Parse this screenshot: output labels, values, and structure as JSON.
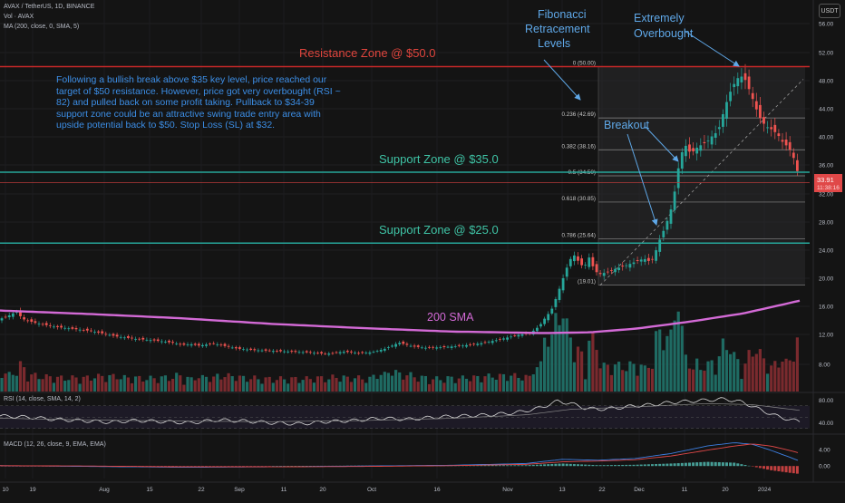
{
  "header": {
    "symbol_line": "AVAX / TetherUS, 1D, BINANCE",
    "volume_line": "Vol · AVAX",
    "ma_line": "MA (200, close, 0, SMA, 5)",
    "currency": "USDT"
  },
  "annotations": {
    "resistance": "Resistance Zone @ $50.0",
    "support_35": "Support Zone @ $35.0",
    "support_25": "Support Zone @ $25.0",
    "fib_title": [
      "Fibonacci",
      "Retracement",
      "Levels"
    ],
    "overbought": [
      "Extremely",
      "Overbought"
    ],
    "breakout": "Breakout",
    "sma_label": "200 SMA",
    "note": "Following a bullish break above $35 key level, price reached our target of $50 resistance. However, price got very overbought (RSI ~ 82) and pulled back on some profit taking. Pullback to $34-39 support zone could be an attractive swing trade entry area with upside potential back to $50. Stop Loss (SL) at $32."
  },
  "price_badges": {
    "last": "33.91",
    "countdown": "11:38:16"
  },
  "panes": {
    "rsi_label": "RSI (14, close, SMA, 14, 2)",
    "macd_label": "MACD (12, 26, close, 9, EMA, EMA)"
  },
  "colors": {
    "up": "#26a69a",
    "down": "#ef5350",
    "vol_up": "#1f6b63",
    "vol_down": "#7a2a2e",
    "resistance": "#c62828",
    "support": "#26a69a",
    "sma": "#d36ad6",
    "annotation": "#5fa8e8",
    "fib_line": "#8a8a8a"
  },
  "chart_data": [
    {
      "type": "candlestick",
      "title": "AVAX / TetherUS, 1D, BINANCE",
      "x_ticks": [
        "10",
        "19",
        "Aug",
        "15",
        "22",
        "Sep",
        "11",
        "20",
        "Oct",
        "16",
        "Nov",
        "13",
        "22",
        "Dec",
        "11",
        "20",
        "2024"
      ],
      "y_ticks": [
        8.0,
        12.0,
        16.0,
        20.0,
        24.0,
        28.0,
        32.0,
        36.0,
        40.0,
        44.0,
        48.0,
        52.0,
        56.0
      ],
      "ylim": [
        6.0,
        57.0
      ],
      "close_path": [
        [
          0,
          14.2
        ],
        [
          12,
          14.8
        ],
        [
          18,
          15.3
        ],
        [
          25,
          14.2
        ],
        [
          40,
          13.6
        ],
        [
          60,
          13.1
        ],
        [
          80,
          12.8
        ],
        [
          100,
          12.5
        ],
        [
          115,
          12.1
        ],
        [
          130,
          11.7
        ],
        [
          150,
          11.4
        ],
        [
          170,
          11.2
        ],
        [
          190,
          10.9
        ],
        [
          200,
          10.6
        ],
        [
          210,
          10.7
        ],
        [
          220,
          10.5
        ],
        [
          235,
          10.8
        ],
        [
          250,
          10.4
        ],
        [
          262,
          10.1
        ],
        [
          280,
          9.9
        ],
        [
          300,
          9.8
        ],
        [
          320,
          9.7
        ],
        [
          340,
          9.6
        ],
        [
          360,
          9.4
        ],
        [
          380,
          9.7
        ],
        [
          395,
          9.5
        ],
        [
          410,
          9.6
        ],
        [
          425,
          10.1
        ],
        [
          440,
          10.9
        ],
        [
          455,
          10.4
        ],
        [
          470,
          10.2
        ],
        [
          490,
          10.3
        ],
        [
          510,
          10.5
        ],
        [
          530,
          10.8
        ],
        [
          550,
          11.3
        ],
        [
          570,
          11.9
        ],
        [
          585,
          12.2
        ],
        [
          595,
          13.2
        ],
        [
          602,
          14.5
        ],
        [
          608,
          15.4
        ],
        [
          614,
          17.4
        ],
        [
          620,
          19.6
        ],
        [
          626,
          21.8
        ],
        [
          632,
          23.5
        ],
        [
          638,
          22.4
        ],
        [
          644,
          21.5
        ],
        [
          650,
          23.0
        ],
        [
          656,
          21.0
        ],
        [
          662,
          20.6
        ],
        [
          670,
          20.9
        ],
        [
          680,
          21.4
        ],
        [
          690,
          21.8
        ],
        [
          700,
          22.3
        ],
        [
          710,
          22.8
        ],
        [
          718,
          22.3
        ],
        [
          722,
          23.4
        ],
        [
          728,
          25.6
        ],
        [
          734,
          27.4
        ],
        [
          740,
          29.8
        ],
        [
          746,
          33.5
        ],
        [
          750,
          37.2
        ],
        [
          756,
          38.8
        ],
        [
          762,
          37.6
        ],
        [
          768,
          38.4
        ],
        [
          774,
          38.9
        ],
        [
          780,
          39.3
        ],
        [
          786,
          40.2
        ],
        [
          792,
          40.8
        ],
        [
          798,
          43.5
        ],
        [
          804,
          46.0
        ],
        [
          810,
          47.6
        ],
        [
          816,
          48.8
        ],
        [
          822,
          48.1
        ],
        [
          828,
          46.2
        ],
        [
          834,
          44.0
        ],
        [
          840,
          42.2
        ],
        [
          846,
          41.4
        ],
        [
          852,
          41.0
        ],
        [
          858,
          40.3
        ],
        [
          864,
          39.1
        ],
        [
          870,
          38.5
        ],
        [
          876,
          36.8
        ],
        [
          882,
          33.9
        ]
      ],
      "sma200": [
        [
          0,
          15.4
        ],
        [
          100,
          14.9
        ],
        [
          200,
          14.3
        ],
        [
          300,
          13.5
        ],
        [
          400,
          12.9
        ],
        [
          500,
          12.4
        ],
        [
          600,
          12.2
        ],
        [
          650,
          12.3
        ],
        [
          700,
          12.8
        ],
        [
          760,
          13.8
        ],
        [
          820,
          15.0
        ],
        [
          882,
          16.8
        ]
      ],
      "horizontal_levels": [
        {
          "name": "Resistance Zone @ $50.0",
          "value": 50.0
        },
        {
          "name": "Support Zone @ $35.0",
          "value": 35.0
        },
        {
          "name": "Support Zone @ $25.0",
          "value": 25.0
        }
      ],
      "fibonacci": [
        {
          "ratio": "0",
          "price": 50.0,
          "label": "0 (50.00)"
        },
        {
          "ratio": "0.236",
          "price": 42.69,
          "label": "0.236 (42.69)"
        },
        {
          "ratio": "0.382",
          "price": 38.16,
          "label": "0.382 (38.16)"
        },
        {
          "ratio": "0.5",
          "price": 34.5,
          "label": "0.5 (34.50)"
        },
        {
          "ratio": "0.618",
          "price": 30.85,
          "label": "0.618 (30.85)"
        },
        {
          "ratio": "0.786",
          "price": 25.64,
          "label": "0.786 (25.64)"
        },
        {
          "ratio": "1",
          "price": 19.01,
          "label": "(19.01)"
        }
      ]
    },
    {
      "type": "line",
      "title": "RSI (14, close, SMA, 14, 2)",
      "y_ticks": [
        40.0,
        80.0
      ],
      "ylim": [
        28,
        92
      ],
      "rsi": [
        [
          0,
          52
        ],
        [
          30,
          50
        ],
        [
          60,
          46
        ],
        [
          90,
          44
        ],
        [
          120,
          41
        ],
        [
          150,
          44
        ],
        [
          180,
          42
        ],
        [
          210,
          40
        ],
        [
          240,
          45
        ],
        [
          270,
          43
        ],
        [
          300,
          40
        ],
        [
          330,
          38
        ],
        [
          360,
          42
        ],
        [
          390,
          44
        ],
        [
          420,
          48
        ],
        [
          450,
          46
        ],
        [
          480,
          50
        ],
        [
          510,
          52
        ],
        [
          540,
          54
        ],
        [
          570,
          58
        ],
        [
          595,
          66
        ],
        [
          615,
          78
        ],
        [
          630,
          74
        ],
        [
          645,
          66
        ],
        [
          660,
          64
        ],
        [
          680,
          66
        ],
        [
          700,
          70
        ],
        [
          720,
          72
        ],
        [
          740,
          76
        ],
        [
          760,
          78
        ],
        [
          780,
          80
        ],
        [
          800,
          82
        ],
        [
          820,
          76
        ],
        [
          840,
          62
        ],
        [
          860,
          50
        ],
        [
          882,
          42
        ]
      ],
      "rsi_sma": [
        [
          0,
          48
        ],
        [
          100,
          45
        ],
        [
          200,
          43
        ],
        [
          300,
          42
        ],
        [
          400,
          44
        ],
        [
          500,
          48
        ],
        [
          580,
          54
        ],
        [
          630,
          64
        ],
        [
          700,
          68
        ],
        [
          780,
          74
        ],
        [
          830,
          72
        ],
        [
          882,
          62
        ]
      ]
    },
    {
      "type": "line",
      "title": "MACD (12, 26, close, 9, EMA, EMA)",
      "y_ticks": [
        0.0,
        4.0
      ],
      "ylim": [
        -3.0,
        7.0
      ],
      "macd": [
        [
          0,
          0.1
        ],
        [
          100,
          -0.1
        ],
        [
          200,
          -0.3
        ],
        [
          300,
          -0.2
        ],
        [
          400,
          0.0
        ],
        [
          500,
          0.2
        ],
        [
          580,
          0.6
        ],
        [
          620,
          1.6
        ],
        [
          660,
          1.4
        ],
        [
          700,
          1.8
        ],
        [
          740,
          3.0
        ],
        [
          780,
          4.8
        ],
        [
          810,
          5.6
        ],
        [
          830,
          5.2
        ],
        [
          850,
          3.8
        ],
        [
          870,
          2.2
        ],
        [
          882,
          1.2
        ]
      ],
      "signal": [
        [
          0,
          0.1
        ],
        [
          100,
          0.0
        ],
        [
          200,
          -0.2
        ],
        [
          300,
          -0.2
        ],
        [
          400,
          -0.1
        ],
        [
          500,
          0.1
        ],
        [
          580,
          0.4
        ],
        [
          620,
          1.0
        ],
        [
          660,
          1.2
        ],
        [
          700,
          1.5
        ],
        [
          740,
          2.4
        ],
        [
          780,
          3.8
        ],
        [
          810,
          4.8
        ],
        [
          830,
          5.3
        ],
        [
          850,
          4.8
        ],
        [
          870,
          3.8
        ],
        [
          882,
          3.1
        ]
      ]
    }
  ]
}
